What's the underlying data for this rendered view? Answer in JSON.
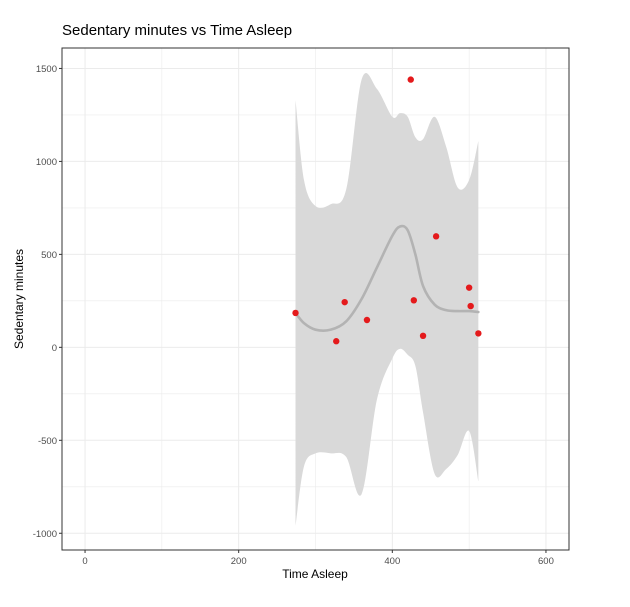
{
  "chart_data": {
    "type": "scatter",
    "title": "Sedentary minutes vs Time Asleep",
    "xlabel": "Time Asleep",
    "ylabel": "Sedentary minutes",
    "xlim": [
      -30,
      630
    ],
    "ylim": [
      -1090,
      1610
    ],
    "x_ticks": [
      0,
      200,
      400,
      600
    ],
    "y_ticks": [
      -1000,
      -500,
      0,
      500,
      1000,
      1500
    ],
    "grid": true,
    "point_color": "#e41a1c",
    "smooth_color": "#b3b3b3",
    "ribbon_color": "#d9d9d9",
    "points": [
      {
        "x": 274,
        "y": 185
      },
      {
        "x": 327,
        "y": 33
      },
      {
        "x": 338,
        "y": 243
      },
      {
        "x": 367,
        "y": 147
      },
      {
        "x": 424,
        "y": 1440
      },
      {
        "x": 428,
        "y": 253
      },
      {
        "x": 440,
        "y": 62
      },
      {
        "x": 457,
        "y": 597
      },
      {
        "x": 500,
        "y": 321
      },
      {
        "x": 502,
        "y": 222
      },
      {
        "x": 512,
        "y": 75
      }
    ],
    "smooth_fit": {
      "x": [
        274,
        285,
        300,
        320,
        340,
        360,
        380,
        400,
        410,
        420,
        430,
        440,
        455,
        470,
        485,
        500,
        512
      ],
      "y": [
        185,
        130,
        95,
        95,
        140,
        260,
        430,
        600,
        650,
        630,
        500,
        330,
        230,
        200,
        195,
        195,
        190
      ],
      "lower": [
        -960,
        -640,
        -570,
        -570,
        -590,
        -790,
        -280,
        -60,
        -8,
        -40,
        -100,
        -350,
        -680,
        -655,
        -580,
        -450,
        -720
      ],
      "upper": [
        1330,
        900,
        760,
        770,
        850,
        1440,
        1390,
        1240,
        1260,
        1240,
        1130,
        1120,
        1240,
        1080,
        860,
        900,
        1110
      ]
    }
  }
}
